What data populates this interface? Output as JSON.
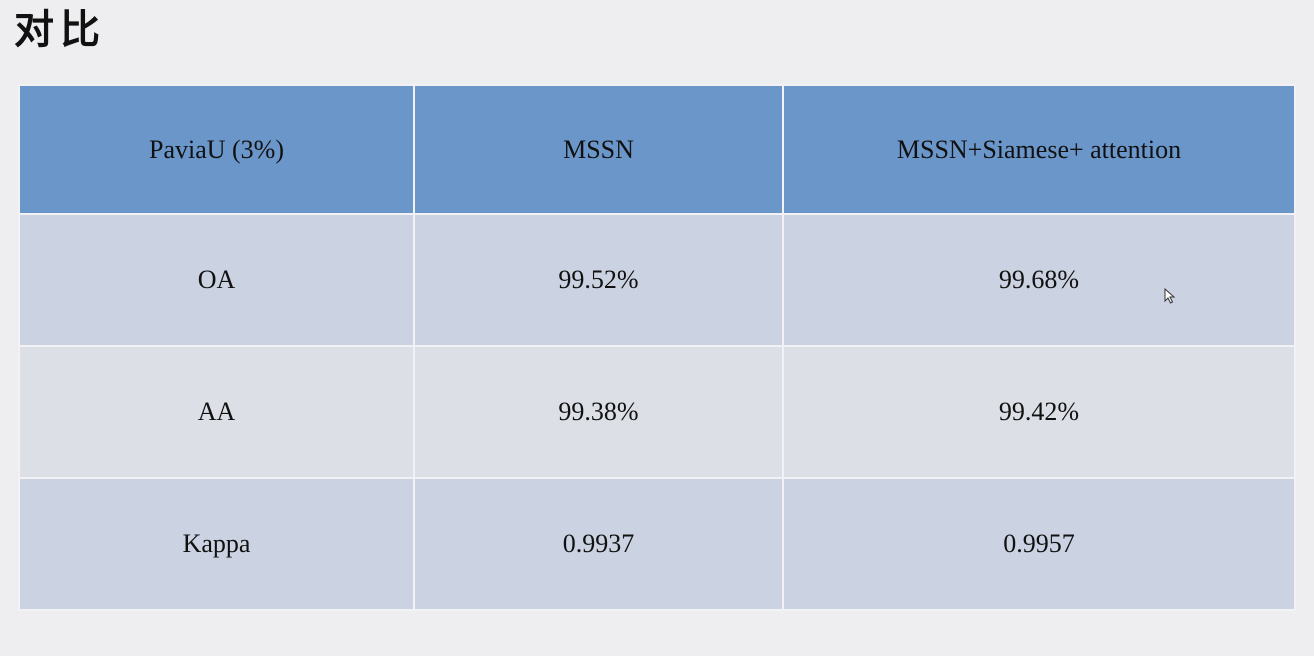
{
  "slide": {
    "title": "对比"
  },
  "table": {
    "headers": [
      "PaviaU (3%)",
      "MSSN",
      "MSSN+Siamese+ attention"
    ],
    "rows": [
      [
        "OA",
        "99.52%",
        "99.68%"
      ],
      [
        "AA",
        "99.38%",
        "99.42%"
      ],
      [
        "Kappa",
        "0.9937",
        "0.9957"
      ]
    ]
  },
  "colors": {
    "background": "#eeedf0",
    "header": "#6b96c9",
    "row_odd": "#cbd2e2",
    "row_even": "#dcdfe6"
  },
  "icons": {
    "cursor": "mouse-pointer-icon"
  }
}
